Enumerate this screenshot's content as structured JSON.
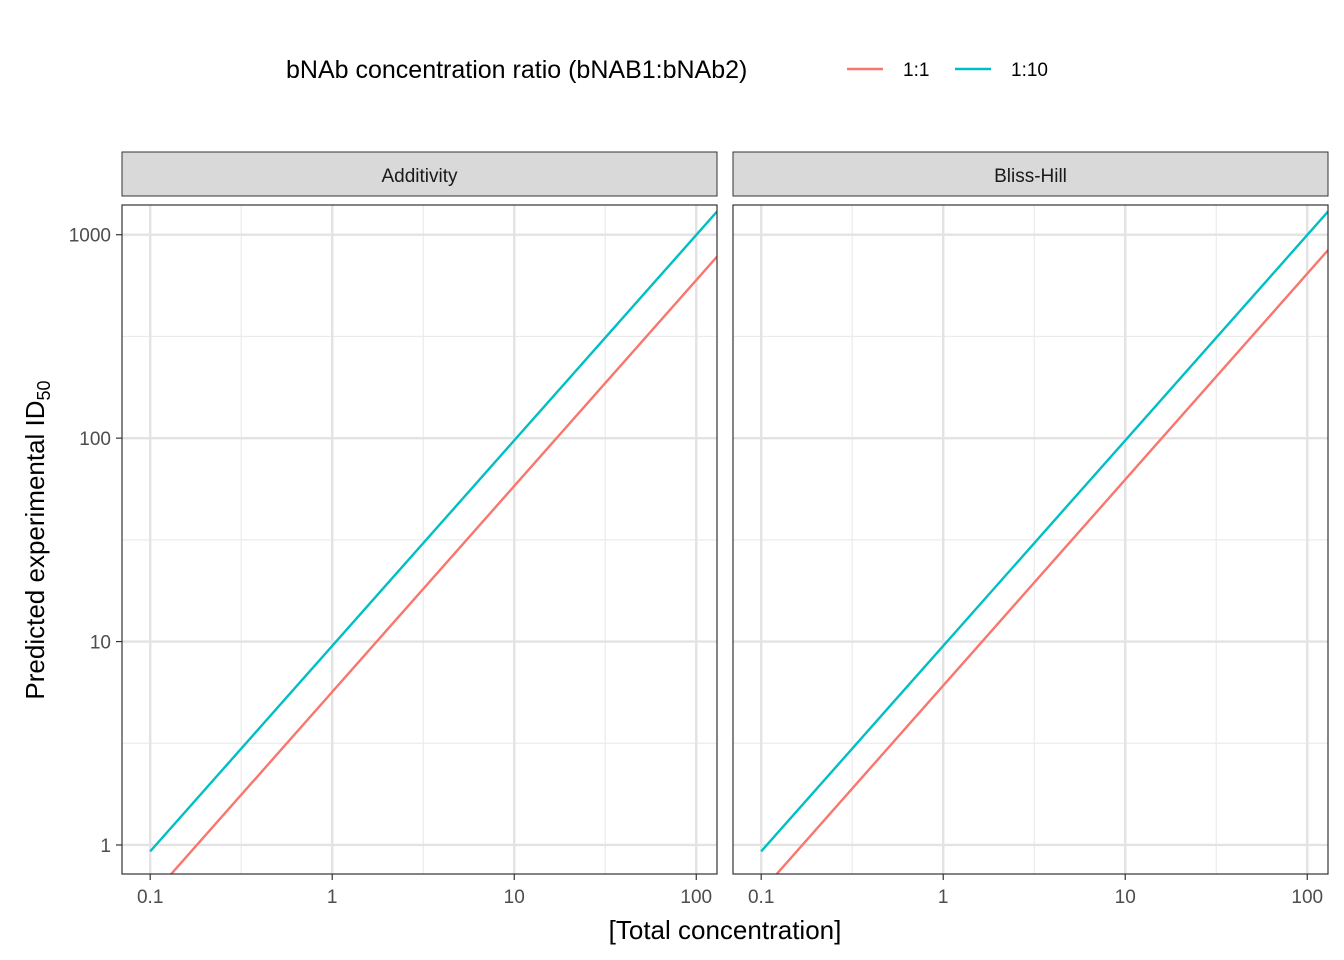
{
  "chart_data": {
    "type": "line",
    "facet_titles": [
      "Additivity",
      "Bliss-Hill"
    ],
    "xlabel": "[Total concentration]",
    "ylabel_main": "Predicted experimental ID",
    "ylabel_sub": "50",
    "x_scale": "log10",
    "y_scale": "log10",
    "xlim": [
      0.07,
      130
    ],
    "ylim": [
      0.72,
      1400
    ],
    "x_ticks": [
      0.1,
      1,
      10,
      100
    ],
    "x_tick_labels": [
      "0.1",
      "1",
      "10",
      "100"
    ],
    "y_ticks": [
      1,
      10,
      100,
      1000
    ],
    "y_tick_labels": [
      "1",
      "10",
      "100",
      "1000"
    ],
    "grid": true,
    "legend": {
      "title": "bNAb concentration ratio (bNAB1:bNAb2)",
      "position": "top",
      "entries": [
        "1:1",
        "1:10"
      ]
    },
    "colors": {
      "1:1": "#F8766D",
      "1:10": "#00BFC4"
    },
    "facets": [
      {
        "name": "Additivity",
        "series": [
          {
            "name": "1:1",
            "x": [
              0.1,
              130
            ],
            "y": [
              0.55,
              780
            ]
          },
          {
            "name": "1:10",
            "x": [
              0.1,
              130
            ],
            "y": [
              0.93,
              1300
            ]
          }
        ]
      },
      {
        "name": "Bliss-Hill",
        "series": [
          {
            "name": "1:1",
            "x": [
              0.1,
              130
            ],
            "y": [
              0.59,
              840
            ]
          },
          {
            "name": "1:10",
            "x": [
              0.1,
              130
            ],
            "y": [
              0.93,
              1300
            ]
          }
        ]
      }
    ]
  }
}
